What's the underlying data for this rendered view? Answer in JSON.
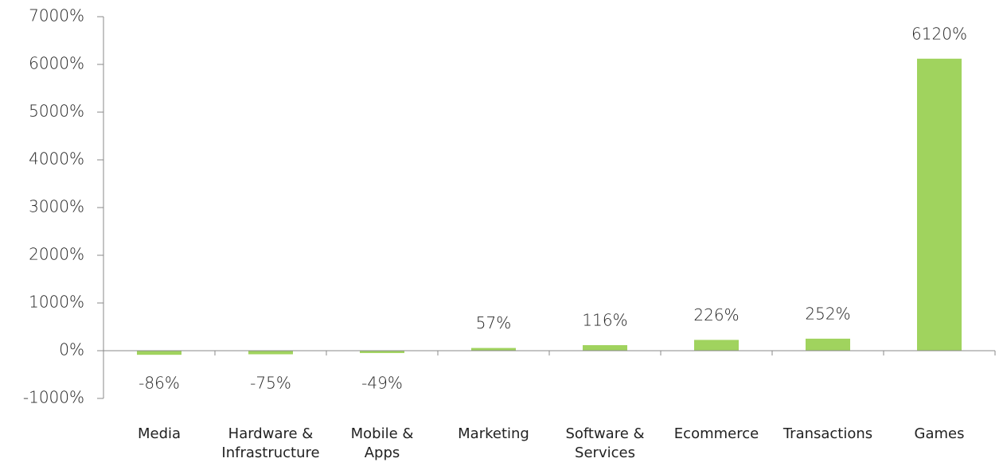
{
  "chart_data": {
    "type": "bar",
    "categories": [
      "Media",
      "Hardware &\nInfrastructure",
      "Mobile &\nApps",
      "Marketing",
      "Software &\nServices",
      "Ecommerce",
      "Transactions",
      "Games"
    ],
    "values": [
      -86,
      -75,
      -49,
      57,
      116,
      226,
      252,
      6120
    ],
    "value_labels": [
      "-86%",
      "-75%",
      "-49%",
      "57%",
      "116%",
      "226%",
      "252%",
      "6120%"
    ],
    "color": "#a0d35e",
    "ylim": [
      -1000,
      7000
    ],
    "yticks": [
      {
        "value": -1000,
        "label": "-1000%"
      },
      {
        "value": 0,
        "label": "0%"
      },
      {
        "value": 1000,
        "label": "1000%"
      },
      {
        "value": 2000,
        "label": "2000%"
      },
      {
        "value": 3000,
        "label": "3000%"
      },
      {
        "value": 4000,
        "label": "4000%"
      },
      {
        "value": 5000,
        "label": "5000%"
      },
      {
        "value": 6000,
        "label": "6000%"
      },
      {
        "value": 7000,
        "label": "7000%"
      }
    ],
    "grid": false
  }
}
